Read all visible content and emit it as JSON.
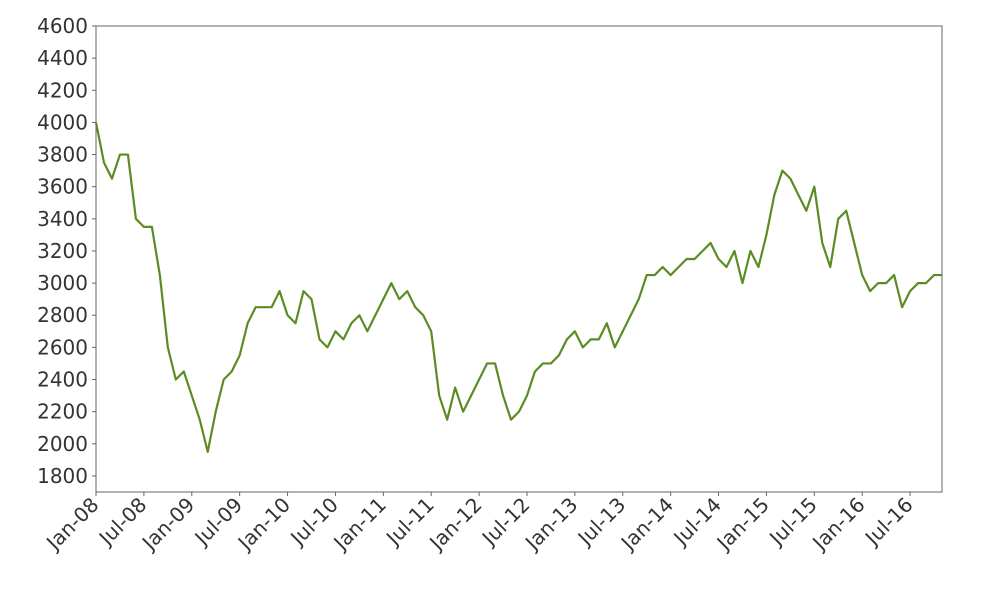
{
  "chart_data": {
    "type": "line",
    "x": [
      "2008-01",
      "2008-02",
      "2008-03",
      "2008-04",
      "2008-05",
      "2008-06",
      "2008-07",
      "2008-08",
      "2008-09",
      "2008-10",
      "2008-11",
      "2008-12",
      "2009-01",
      "2009-02",
      "2009-03",
      "2009-04",
      "2009-05",
      "2009-06",
      "2009-07",
      "2009-08",
      "2009-09",
      "2009-10",
      "2009-11",
      "2009-12",
      "2010-01",
      "2010-02",
      "2010-03",
      "2010-04",
      "2010-05",
      "2010-06",
      "2010-07",
      "2010-08",
      "2010-09",
      "2010-10",
      "2010-11",
      "2010-12",
      "2011-01",
      "2011-02",
      "2011-03",
      "2011-04",
      "2011-05",
      "2011-06",
      "2011-07",
      "2011-08",
      "2011-09",
      "2011-10",
      "2011-11",
      "2011-12",
      "2012-01",
      "2012-02",
      "2012-03",
      "2012-04",
      "2012-05",
      "2012-06",
      "2012-07",
      "2012-08",
      "2012-09",
      "2012-10",
      "2012-11",
      "2012-12",
      "2013-01",
      "2013-02",
      "2013-03",
      "2013-04",
      "2013-05",
      "2013-06",
      "2013-07",
      "2013-08",
      "2013-09",
      "2013-10",
      "2013-11",
      "2013-12",
      "2014-01",
      "2014-02",
      "2014-03",
      "2014-04",
      "2014-05",
      "2014-06",
      "2014-07",
      "2014-08",
      "2014-09",
      "2014-10",
      "2014-11",
      "2014-12",
      "2015-01",
      "2015-02",
      "2015-03",
      "2015-04",
      "2015-05",
      "2015-06",
      "2015-07",
      "2015-08",
      "2015-09",
      "2015-10",
      "2015-11",
      "2015-12",
      "2016-01",
      "2016-02",
      "2016-03",
      "2016-04",
      "2016-05",
      "2016-06",
      "2016-07",
      "2016-08",
      "2016-09",
      "2016-10",
      "2016-11"
    ],
    "series": [
      {
        "color": "#5b8c23",
        "values": [
          4000,
          3750,
          3650,
          3800,
          3800,
          3400,
          3350,
          3350,
          3050,
          2600,
          2400,
          2450,
          2300,
          2150,
          1950,
          2200,
          2400,
          2450,
          2550,
          2750,
          2850,
          2850,
          2850,
          2950,
          2800,
          2750,
          2950,
          2900,
          2650,
          2600,
          2700,
          2650,
          2750,
          2800,
          2700,
          2800,
          2900,
          3000,
          2900,
          2950,
          2850,
          2800,
          2700,
          2300,
          2150,
          2350,
          2200,
          2300,
          2400,
          2500,
          2500,
          2300,
          2150,
          2200,
          2300,
          2450,
          2500,
          2500,
          2550,
          2650,
          2700,
          2600,
          2650,
          2650,
          2750,
          2600,
          2700,
          2800,
          2900,
          3050,
          3050,
          3100,
          3050,
          3100,
          3150,
          3150,
          3200,
          3250,
          3150,
          3100,
          3200,
          3000,
          3200,
          3100,
          3300,
          3550,
          3700,
          3650,
          3550,
          3450,
          3600,
          3250,
          3100,
          3400,
          3450,
          3250,
          3050,
          2950,
          3000,
          3000,
          3050,
          2850,
          2950,
          3000,
          3000,
          3050,
          3050
        ]
      }
    ],
    "xlim": [
      "2008-01",
      "2016-11"
    ],
    "xticks": [
      {
        "value": "2008-01",
        "label": "Jan-08"
      },
      {
        "value": "2008-07",
        "label": "Jul-08"
      },
      {
        "value": "2009-01",
        "label": "Jan-09"
      },
      {
        "value": "2009-07",
        "label": "Jul-09"
      },
      {
        "value": "2010-01",
        "label": "Jan-10"
      },
      {
        "value": "2010-07",
        "label": "Jul-10"
      },
      {
        "value": "2011-01",
        "label": "Jan-11"
      },
      {
        "value": "2011-07",
        "label": "Jul-11"
      },
      {
        "value": "2012-01",
        "label": "Jan-12"
      },
      {
        "value": "2012-07",
        "label": "Jul-12"
      },
      {
        "value": "2013-01",
        "label": "Jan-13"
      },
      {
        "value": "2013-07",
        "label": "Jul-13"
      },
      {
        "value": "2014-01",
        "label": "Jan-14"
      },
      {
        "value": "2014-07",
        "label": "Jul-14"
      },
      {
        "value": "2015-01",
        "label": "Jan-15"
      },
      {
        "value": "2015-07",
        "label": "Jul-15"
      },
      {
        "value": "2016-01",
        "label": "Jan-16"
      },
      {
        "value": "2016-07",
        "label": "Jul-16"
      }
    ],
    "ylim": [
      1700,
      4600
    ],
    "yticks": [
      1800,
      2000,
      2200,
      2400,
      2600,
      2800,
      3000,
      3200,
      3400,
      3600,
      3800,
      4000,
      4200,
      4400,
      4600
    ]
  }
}
